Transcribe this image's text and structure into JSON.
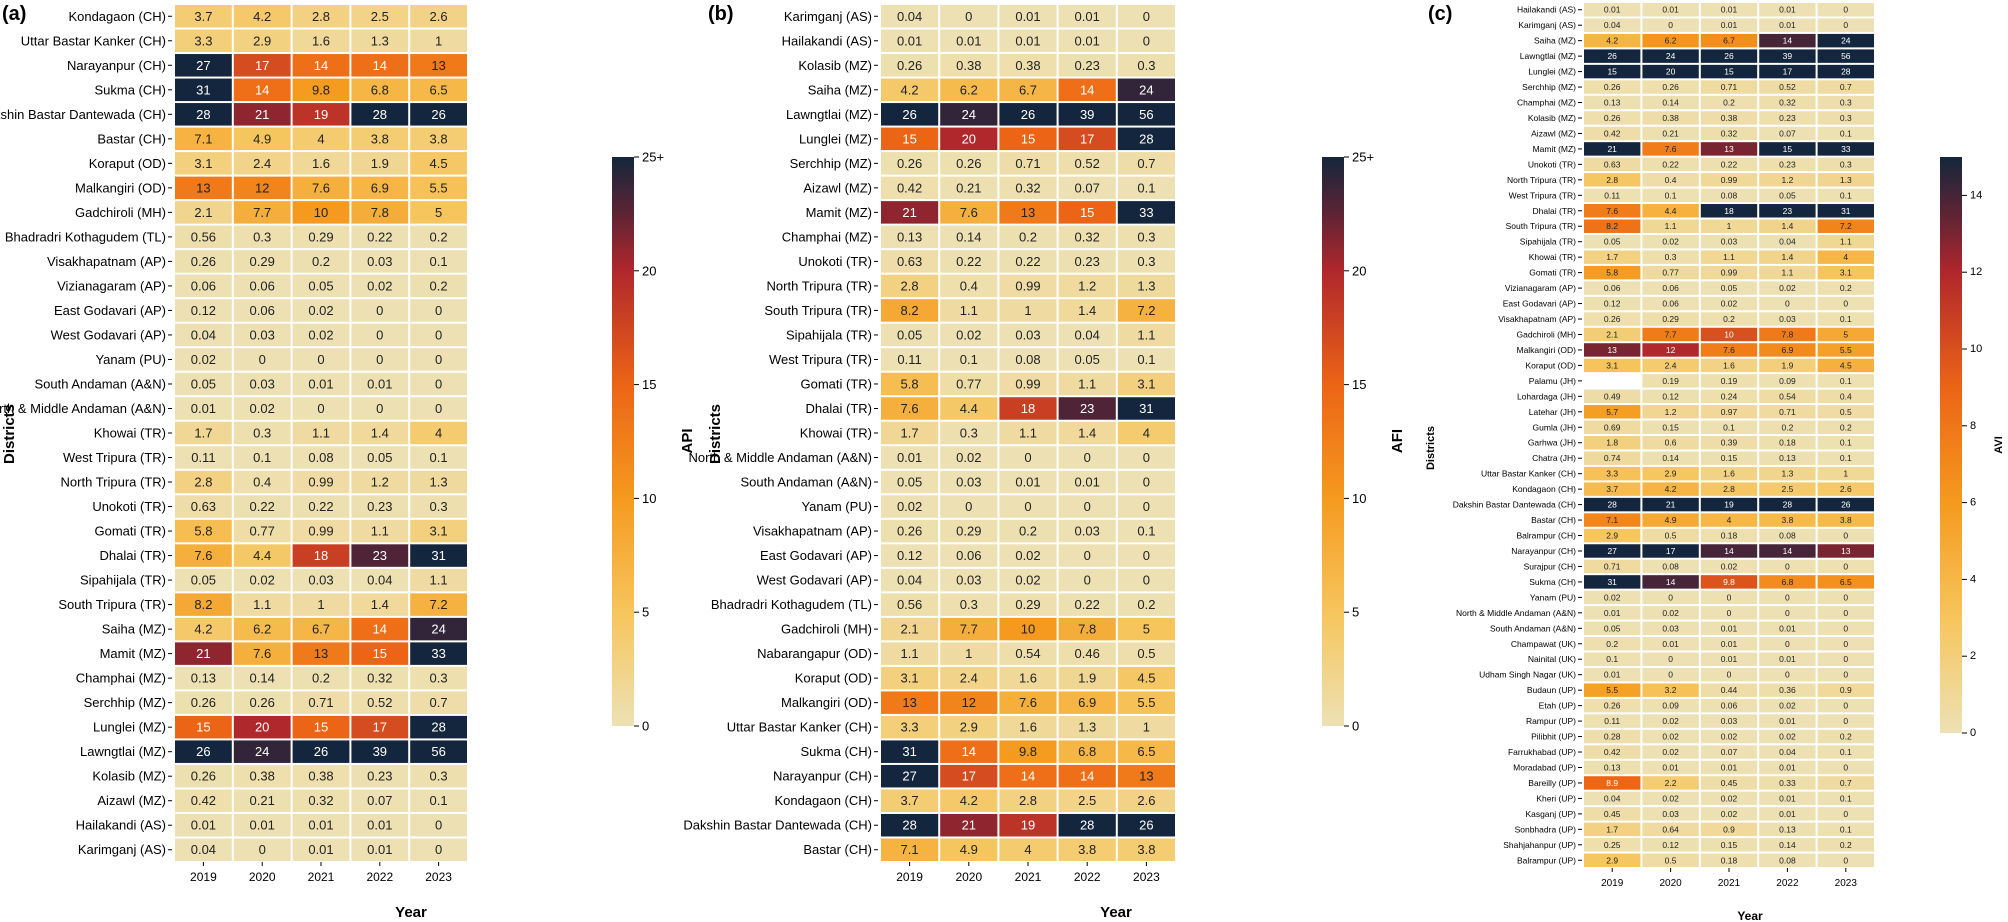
{
  "chart_data": [
    {
      "type": "heatmap",
      "panel_label": "(a)",
      "xlabel": "Year",
      "ylabel": "Districts",
      "colorbar_label": "API",
      "colorbar_ticks": [
        "0",
        "5",
        "10",
        "15",
        "20",
        "25+"
      ],
      "vmax": 25,
      "columns": [
        "2019",
        "2020",
        "2021",
        "2022",
        "2023"
      ],
      "rows": [
        "Kondagaon (CH)",
        "Uttar Bastar Kanker (CH)",
        "Narayanpur (CH)",
        "Sukma (CH)",
        "Dakshin Bastar Dantewada (CH)",
        "Bastar (CH)",
        "Koraput (OD)",
        "Malkangiri (OD)",
        "Gadchiroli (MH)",
        "Bhadradri Kothagudem (TL)",
        "Visakhapatnam (AP)",
        "Vizianagaram (AP)",
        "East Godavari (AP)",
        "West Godavari (AP)",
        "Yanam (PU)",
        "South Andaman (A&N)",
        "North  & Middle Andaman (A&N)",
        "Khowai (TR)",
        "West Tripura (TR)",
        "North Tripura (TR)",
        "Unokoti (TR)",
        "Gomati (TR)",
        "Dhalai (TR)",
        "Sipahijala (TR)",
        "South Tripura (TR)",
        "Saiha (MZ)",
        "Mamit (MZ)",
        "Champhai (MZ)",
        "Serchhip (MZ)",
        "Lunglei (MZ)",
        "Lawngtlai (MZ)",
        "Kolasib (MZ)",
        "Aizawl (MZ)",
        "Hailakandi (AS)",
        "Karimganj (AS)"
      ],
      "values": [
        [
          "3.7",
          "4.2",
          "2.8",
          "2.5",
          "2.6"
        ],
        [
          "3.3",
          "2.9",
          "1.6",
          "1.3",
          "1"
        ],
        [
          "27",
          "17",
          "14",
          "14",
          "13"
        ],
        [
          "31",
          "14",
          "9.8",
          "6.8",
          "6.5"
        ],
        [
          "28",
          "21",
          "19",
          "28",
          "26"
        ],
        [
          "7.1",
          "4.9",
          "4",
          "3.8",
          "3.8"
        ],
        [
          "3.1",
          "2.4",
          "1.6",
          "1.9",
          "4.5"
        ],
        [
          "13",
          "12",
          "7.6",
          "6.9",
          "5.5"
        ],
        [
          "2.1",
          "7.7",
          "10",
          "7.8",
          "5"
        ],
        [
          "0.56",
          "0.3",
          "0.29",
          "0.22",
          "0.2"
        ],
        [
          "0.26",
          "0.29",
          "0.2",
          "0.03",
          "0.1"
        ],
        [
          "0.06",
          "0.06",
          "0.05",
          "0.02",
          "0.2"
        ],
        [
          "0.12",
          "0.06",
          "0.02",
          "0",
          "0"
        ],
        [
          "0.04",
          "0.03",
          "0.02",
          "0",
          "0"
        ],
        [
          "0.02",
          "0",
          "0",
          "0",
          "0"
        ],
        [
          "0.05",
          "0.03",
          "0.01",
          "0.01",
          "0"
        ],
        [
          "0.01",
          "0.02",
          "0",
          "0",
          "0"
        ],
        [
          "1.7",
          "0.3",
          "1.1",
          "1.4",
          "4"
        ],
        [
          "0.11",
          "0.1",
          "0.08",
          "0.05",
          "0.1"
        ],
        [
          "2.8",
          "0.4",
          "0.99",
          "1.2",
          "1.3"
        ],
        [
          "0.63",
          "0.22",
          "0.22",
          "0.23",
          "0.3"
        ],
        [
          "5.8",
          "0.77",
          "0.99",
          "1.1",
          "3.1"
        ],
        [
          "7.6",
          "4.4",
          "18",
          "23",
          "31"
        ],
        [
          "0.05",
          "0.02",
          "0.03",
          "0.04",
          "1.1"
        ],
        [
          "8.2",
          "1.1",
          "1",
          "1.4",
          "7.2"
        ],
        [
          "4.2",
          "6.2",
          "6.7",
          "14",
          "24"
        ],
        [
          "21",
          "7.6",
          "13",
          "15",
          "33"
        ],
        [
          "0.13",
          "0.14",
          "0.2",
          "0.32",
          "0.3"
        ],
        [
          "0.26",
          "0.26",
          "0.71",
          "0.52",
          "0.7"
        ],
        [
          "15",
          "20",
          "15",
          "17",
          "28"
        ],
        [
          "26",
          "24",
          "26",
          "39",
          "56"
        ],
        [
          "0.26",
          "0.38",
          "0.38",
          "0.23",
          "0.3"
        ],
        [
          "0.42",
          "0.21",
          "0.32",
          "0.07",
          "0.1"
        ],
        [
          "0.01",
          "0.01",
          "0.01",
          "0.01",
          "0"
        ],
        [
          "0.04",
          "0",
          "0.01",
          "0.01",
          "0"
        ]
      ]
    },
    {
      "type": "heatmap",
      "panel_label": "(b)",
      "xlabel": "Year",
      "ylabel": "Districts",
      "colorbar_label": "AFI",
      "colorbar_ticks": [
        "0",
        "5",
        "10",
        "15",
        "20",
        "25+"
      ],
      "vmax": 25,
      "columns": [
        "2019",
        "2020",
        "2021",
        "2022",
        "2023"
      ],
      "rows": [
        "Karimganj (AS)",
        "Hailakandi (AS)",
        "Kolasib (MZ)",
        "Saiha (MZ)",
        "Lawngtlai (MZ)",
        "Lunglei (MZ)",
        "Serchhip (MZ)",
        "Aizawl (MZ)",
        "Mamit (MZ)",
        "Champhai (MZ)",
        "Unokoti (TR)",
        "North Tripura (TR)",
        "South Tripura (TR)",
        "Sipahijala (TR)",
        "West Tripura (TR)",
        "Gomati (TR)",
        "Dhalai (TR)",
        "Khowai (TR)",
        "North  & Middle Andaman (A&N)",
        "South Andaman (A&N)",
        "Yanam (PU)",
        "Visakhapatnam (AP)",
        "East Godavari (AP)",
        "West Godavari (AP)",
        "Bhadradri Kothagudem (TL)",
        "Gadchiroli (MH)",
        "Nabarangapur (OD)",
        "Koraput (OD)",
        "Malkangiri (OD)",
        "Uttar Bastar Kanker (CH)",
        "Sukma (CH)",
        "Narayanpur (CH)",
        "Kondagaon (CH)",
        "Dakshin Bastar Dantewada (CH)",
        "Bastar (CH)"
      ],
      "values": [
        [
          "0.04",
          "0",
          "0.01",
          "0.01",
          "0"
        ],
        [
          "0.01",
          "0.01",
          "0.01",
          "0.01",
          "0"
        ],
        [
          "0.26",
          "0.38",
          "0.38",
          "0.23",
          "0.3"
        ],
        [
          "4.2",
          "6.2",
          "6.7",
          "14",
          "24"
        ],
        [
          "26",
          "24",
          "26",
          "39",
          "56"
        ],
        [
          "15",
          "20",
          "15",
          "17",
          "28"
        ],
        [
          "0.26",
          "0.26",
          "0.71",
          "0.52",
          "0.7"
        ],
        [
          "0.42",
          "0.21",
          "0.32",
          "0.07",
          "0.1"
        ],
        [
          "21",
          "7.6",
          "13",
          "15",
          "33"
        ],
        [
          "0.13",
          "0.14",
          "0.2",
          "0.32",
          "0.3"
        ],
        [
          "0.63",
          "0.22",
          "0.22",
          "0.23",
          "0.3"
        ],
        [
          "2.8",
          "0.4",
          "0.99",
          "1.2",
          "1.3"
        ],
        [
          "8.2",
          "1.1",
          "1",
          "1.4",
          "7.2"
        ],
        [
          "0.05",
          "0.02",
          "0.03",
          "0.04",
          "1.1"
        ],
        [
          "0.11",
          "0.1",
          "0.08",
          "0.05",
          "0.1"
        ],
        [
          "5.8",
          "0.77",
          "0.99",
          "1.1",
          "3.1"
        ],
        [
          "7.6",
          "4.4",
          "18",
          "23",
          "31"
        ],
        [
          "1.7",
          "0.3",
          "1.1",
          "1.4",
          "4"
        ],
        [
          "0.01",
          "0.02",
          "0",
          "0",
          "0"
        ],
        [
          "0.05",
          "0.03",
          "0.01",
          "0.01",
          "0"
        ],
        [
          "0.02",
          "0",
          "0",
          "0",
          "0"
        ],
        [
          "0.26",
          "0.29",
          "0.2",
          "0.03",
          "0.1"
        ],
        [
          "0.12",
          "0.06",
          "0.02",
          "0",
          "0"
        ],
        [
          "0.04",
          "0.03",
          "0.02",
          "0",
          "0"
        ],
        [
          "0.56",
          "0.3",
          "0.29",
          "0.22",
          "0.2"
        ],
        [
          "2.1",
          "7.7",
          "10",
          "7.8",
          "5"
        ],
        [
          "1.1",
          "1",
          "0.54",
          "0.46",
          "0.5"
        ],
        [
          "3.1",
          "2.4",
          "1.6",
          "1.9",
          "4.5"
        ],
        [
          "13",
          "12",
          "7.6",
          "6.9",
          "5.5"
        ],
        [
          "3.3",
          "2.9",
          "1.6",
          "1.3",
          "1"
        ],
        [
          "31",
          "14",
          "9.8",
          "6.8",
          "6.5"
        ],
        [
          "27",
          "17",
          "14",
          "14",
          "13"
        ],
        [
          "3.7",
          "4.2",
          "2.8",
          "2.5",
          "2.6"
        ],
        [
          "28",
          "21",
          "19",
          "28",
          "26"
        ],
        [
          "7.1",
          "4.9",
          "4",
          "3.8",
          "3.8"
        ]
      ]
    },
    {
      "type": "heatmap",
      "panel_label": "(c)",
      "xlabel": "Year",
      "ylabel": "Districts",
      "colorbar_label": "AVI",
      "colorbar_ticks": [
        "0",
        "2",
        "4",
        "6",
        "8",
        "10",
        "12",
        "14"
      ],
      "vmax": 15,
      "columns": [
        "2019",
        "2020",
        "2021",
        "2022",
        "2023"
      ],
      "rows": [
        "Hailakandi (AS)",
        "Karimganj (AS)",
        "Saiha (MZ)",
        "Lawngtlai (MZ)",
        "Lunglei (MZ)",
        "Serchhip (MZ)",
        "Champhai (MZ)",
        "Kolasib (MZ)",
        "Aizawl (MZ)",
        "Mamit (MZ)",
        "Unokoti (TR)",
        "North Tripura (TR)",
        "West Tripura (TR)",
        "Dhalai (TR)",
        "South Tripura (TR)",
        "Sipahijala (TR)",
        "Khowai (TR)",
        "Gomati (TR)",
        "Vizianagaram (AP)",
        "East Godavari (AP)",
        "Visakhapatnam (AP)",
        "Gadchiroli (MH)",
        "Malkangiri (OD)",
        "Koraput (OD)",
        "Palamu (JH)",
        "Lohardaga (JH)",
        "Latehar (JH)",
        "Gumla (JH)",
        "Garhwa (JH)",
        "Chatra (JH)",
        "Uttar Bastar Kanker (CH)",
        "Kondagaon (CH)",
        "Dakshin Bastar Dantewada (CH)",
        "Bastar (CH)",
        "Balrampur (CH)",
        "Narayanpur (CH)",
        "Surajpur (CH)",
        "Sukma (CH)",
        "Yanam (PU)",
        "North  & Middle Andaman (A&N)",
        "South Andaman (A&N)",
        "Champawat (UK)",
        "Nainital (UK)",
        "Udham Singh Nagar (UK)",
        "Budaun (UP)",
        "Etah (UP)",
        "Rampur (UP)",
        "Pilibhit (UP)",
        "Farrukhabad (UP)",
        "Moradabad (UP)",
        "Bareilly (UP)",
        "Kheri (UP)",
        "Kasganj (UP)",
        "Sonbhadra (UP)",
        "Shahjahanpur (UP)",
        "Balrampur (UP)"
      ],
      "values": [
        [
          "0.01",
          "0.01",
          "0.01",
          "0.01",
          "0"
        ],
        [
          "0.04",
          "0",
          "0.01",
          "0.01",
          "0"
        ],
        [
          "4.2",
          "6.2",
          "6.7",
          "14",
          "24"
        ],
        [
          "26",
          "24",
          "26",
          "39",
          "56"
        ],
        [
          "15",
          "20",
          "15",
          "17",
          "28"
        ],
        [
          "0.26",
          "0.26",
          "0.71",
          "0.52",
          "0.7"
        ],
        [
          "0.13",
          "0.14",
          "0.2",
          "0.32",
          "0.3"
        ],
        [
          "0.26",
          "0.38",
          "0.38",
          "0.23",
          "0.3"
        ],
        [
          "0.42",
          "0.21",
          "0.32",
          "0.07",
          "0.1"
        ],
        [
          "21",
          "7.6",
          "13",
          "15",
          "33"
        ],
        [
          "0.63",
          "0.22",
          "0.22",
          "0.23",
          "0.3"
        ],
        [
          "2.8",
          "0.4",
          "0.99",
          "1.2",
          "1.3"
        ],
        [
          "0.11",
          "0.1",
          "0.08",
          "0.05",
          "0.1"
        ],
        [
          "7.6",
          "4.4",
          "18",
          "23",
          "31"
        ],
        [
          "8.2",
          "1.1",
          "1",
          "1.4",
          "7.2"
        ],
        [
          "0.05",
          "0.02",
          "0.03",
          "0.04",
          "1.1"
        ],
        [
          "1.7",
          "0.3",
          "1.1",
          "1.4",
          "4"
        ],
        [
          "5.8",
          "0.77",
          "0.99",
          "1.1",
          "3.1"
        ],
        [
          "0.06",
          "0.06",
          "0.05",
          "0.02",
          "0.2"
        ],
        [
          "0.12",
          "0.06",
          "0.02",
          "0",
          "0"
        ],
        [
          "0.26",
          "0.29",
          "0.2",
          "0.03",
          "0.1"
        ],
        [
          "2.1",
          "7.7",
          "10",
          "7.8",
          "5"
        ],
        [
          "13",
          "12",
          "7.6",
          "6.9",
          "5.5"
        ],
        [
          "3.1",
          "2.4",
          "1.6",
          "1.9",
          "4.5"
        ],
        [
          "",
          "0.19",
          "0.19",
          "0.09",
          "0.1"
        ],
        [
          "0.49",
          "0.12",
          "0.24",
          "0.54",
          "0.4"
        ],
        [
          "5.7",
          "1.2",
          "0.97",
          "0.71",
          "0.5"
        ],
        [
          "0.69",
          "0.15",
          "0.1",
          "0.2",
          "0.2"
        ],
        [
          "1.8",
          "0.6",
          "0.39",
          "0.18",
          "0.1"
        ],
        [
          "0.74",
          "0.14",
          "0.15",
          "0.13",
          "0.1"
        ],
        [
          "3.3",
          "2.9",
          "1.6",
          "1.3",
          "1"
        ],
        [
          "3.7",
          "4.2",
          "2.8",
          "2.5",
          "2.6"
        ],
        [
          "28",
          "21",
          "19",
          "28",
          "26"
        ],
        [
          "7.1",
          "4.9",
          "4",
          "3.8",
          "3.8"
        ],
        [
          "2.9",
          "0.5",
          "0.18",
          "0.08",
          "0"
        ],
        [
          "27",
          "17",
          "14",
          "14",
          "13"
        ],
        [
          "0.71",
          "0.08",
          "0.02",
          "0",
          "0"
        ],
        [
          "31",
          "14",
          "9.8",
          "6.8",
          "6.5"
        ],
        [
          "0.02",
          "0",
          "0",
          "0",
          "0"
        ],
        [
          "0.01",
          "0.02",
          "0",
          "0",
          "0"
        ],
        [
          "0.05",
          "0.03",
          "0.01",
          "0.01",
          "0"
        ],
        [
          "0.2",
          "0.01",
          "0.01",
          "0",
          "0"
        ],
        [
          "0.1",
          "0",
          "0.01",
          "0.01",
          "0"
        ],
        [
          "0.01",
          "0",
          "0",
          "0",
          "0"
        ],
        [
          "5.5",
          "3.2",
          "0.44",
          "0.36",
          "0.9"
        ],
        [
          "0.26",
          "0.09",
          "0.06",
          "0.02",
          "0"
        ],
        [
          "0.11",
          "0.02",
          "0.03",
          "0.01",
          "0"
        ],
        [
          "0.28",
          "0.02",
          "0.02",
          "0.02",
          "0.2"
        ],
        [
          "0.42",
          "0.02",
          "0.07",
          "0.04",
          "0.1"
        ],
        [
          "0.13",
          "0.01",
          "0.01",
          "0.01",
          "0"
        ],
        [
          "8.9",
          "2.2",
          "0.45",
          "0.33",
          "0.7"
        ],
        [
          "0.04",
          "0.02",
          "0.02",
          "0.01",
          "0.1"
        ],
        [
          "0.45",
          "0.03",
          "0.02",
          "0.01",
          "0"
        ],
        [
          "1.7",
          "0.64",
          "0.9",
          "0.13",
          "0.1"
        ],
        [
          "0.25",
          "0.12",
          "0.15",
          "0.14",
          "0.2"
        ],
        [
          "2.9",
          "0.5",
          "0.18",
          "0.08",
          "0"
        ]
      ]
    }
  ]
}
